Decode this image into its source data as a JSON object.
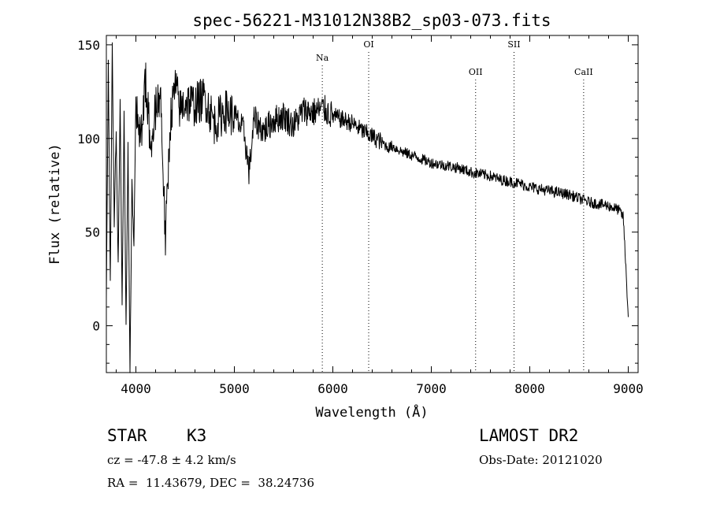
{
  "chart_data": {
    "type": "line",
    "title": "spec-56221-M31012N38B2_sp03-073.fits",
    "xlabel": "Wavelength (Å)",
    "ylabel": "Flux (relative)",
    "xlim": [
      3700,
      9100
    ],
    "ylim": [
      -25,
      155
    ],
    "xticks": [
      4000,
      5000,
      6000,
      7000,
      8000,
      9000
    ],
    "xtick_labels": [
      "4000",
      "5000",
      "6000",
      "7000",
      "8000",
      "9000"
    ],
    "yticks": [
      0,
      50,
      100,
      150
    ],
    "ytick_labels": [
      "0",
      "50",
      "100",
      "150"
    ],
    "grid": false,
    "line_color": "#000000",
    "spectral_lines": [
      {
        "label": "Na",
        "wavelength": 5893
      },
      {
        "label": "OI",
        "wavelength": 6364
      },
      {
        "label": "OII",
        "wavelength": 7450
      },
      {
        "label": "SII",
        "wavelength": 7840
      },
      {
        "label": "CaII",
        "wavelength": 8547
      }
    ],
    "series": [
      {
        "name": "flux",
        "x": [
          3700,
          3720,
          3740,
          3760,
          3780,
          3800,
          3820,
          3840,
          3860,
          3880,
          3900,
          3920,
          3940,
          3960,
          3980,
          4000,
          4050,
          4100,
          4150,
          4200,
          4250,
          4300,
          4350,
          4400,
          4450,
          4500,
          4600,
          4700,
          4800,
          4900,
          5000,
          5100,
          5150,
          5200,
          5300,
          5400,
          5500,
          5600,
          5700,
          5800,
          5900,
          6000,
          6100,
          6200,
          6300,
          6400,
          6500,
          6563,
          6600,
          6700,
          6800,
          6900,
          7000,
          7100,
          7200,
          7300,
          7400,
          7500,
          7600,
          7700,
          7800,
          7900,
          8000,
          8100,
          8200,
          8300,
          8400,
          8500,
          8600,
          8700,
          8800,
          8900,
          8950,
          9000
        ],
        "y": [
          15,
          140,
          20,
          150,
          55,
          105,
          30,
          125,
          10,
          115,
          0,
          95,
          -25,
          75,
          45,
          120,
          100,
          130,
          95,
          115,
          125,
          45,
          110,
          128,
          115,
          120,
          118,
          122,
          108,
          115,
          112,
          103,
          82,
          110,
          104,
          110,
          112,
          107,
          115,
          114,
          116,
          112,
          110,
          108,
          104,
          101,
          98,
          95,
          96,
          93,
          91,
          89,
          87,
          86,
          85,
          84,
          82,
          81,
          80,
          78,
          77,
          76,
          74,
          73,
          72,
          71,
          70,
          68,
          66,
          65,
          64,
          62,
          58,
          5
        ]
      }
    ]
  },
  "info": {
    "object_class": "STAR",
    "subclass": "K3",
    "survey": "LAMOST DR2",
    "redshift": "cz = -47.8 ± 4.2 km/s",
    "obs_date": "Obs-Date: 20121020",
    "coords": "RA =  11.43679, DEC =  38.24736"
  }
}
